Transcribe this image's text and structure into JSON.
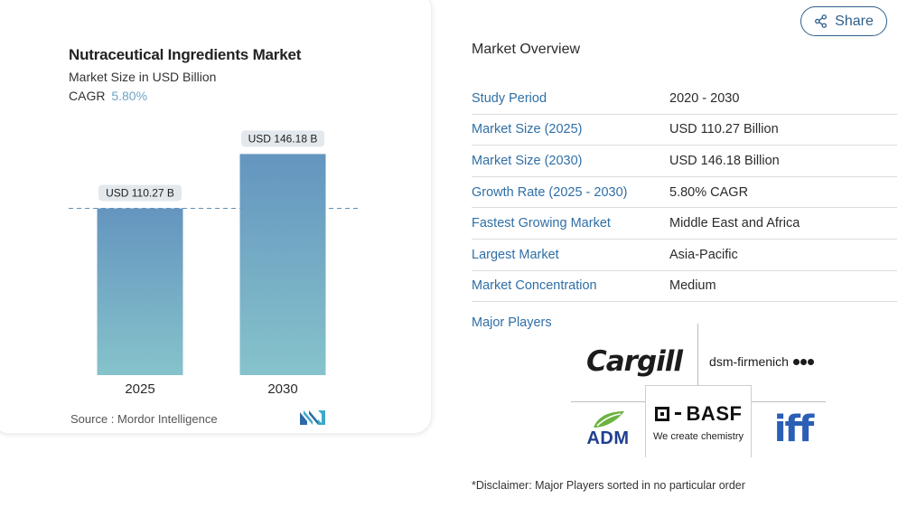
{
  "chart_data": {
    "type": "bar",
    "title": "Nutraceutical Ingredients Market",
    "subtitle": "Market Size in USD Billion",
    "cagr_label": "CAGR",
    "cagr_value": "5.80%",
    "categories": [
      "2025",
      "2030"
    ],
    "values": [
      110.27,
      146.18
    ],
    "data_labels": [
      "USD 110.27 B",
      "USD 146.18 B"
    ],
    "ylim": [
      0,
      150
    ],
    "reference_line_value": 110.27,
    "colors": {
      "bar_top": "#6495bf",
      "bar_bottom": "#86c3cb",
      "dashed_line": "#5f8fb5",
      "label_bg": "#e3e8ec"
    }
  },
  "source": "Source :  Mordor Intelligence",
  "share_label": "Share",
  "overview": {
    "title": "Market Overview",
    "rows": [
      {
        "key": "Study Period",
        "value": "2020 - 2030"
      },
      {
        "key": "Market Size (2025)",
        "value": "USD 110.27 Billion"
      },
      {
        "key": "Market Size (2030)",
        "value": "USD 146.18 Billion"
      },
      {
        "key": "Growth Rate (2025 - 2030)",
        "value": "5.80% CAGR"
      },
      {
        "key": "Fastest Growing Market",
        "value": "Middle East and Africa"
      },
      {
        "key": "Largest Market",
        "value": "Asia-Pacific"
      },
      {
        "key": "Market Concentration",
        "value": "Medium"
      }
    ]
  },
  "major_players": {
    "label": "Major Players",
    "cargill": "Cargill",
    "dsm": "dsm-firmenich",
    "adm": "ADM",
    "basf": "BASF",
    "basf_tagline": "We create chemistry",
    "iff": "iff"
  },
  "disclaimer": "*Disclaimer: Major Players sorted in no particular order",
  "colors": {
    "accent": "#2f6fa6",
    "share_border": "#2f5f8a",
    "cagr": "#6fa3c8"
  }
}
